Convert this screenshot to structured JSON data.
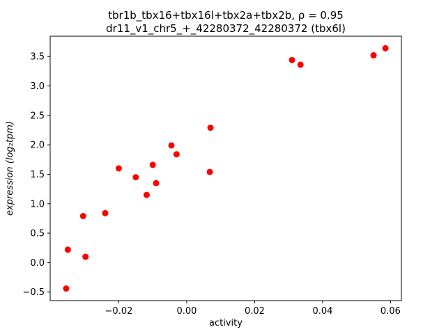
{
  "chart_data": {
    "type": "scatter",
    "title_line1": "tbr1b_tbx16+tbx16l+tbx2a+tbx2b, ρ = 0.95",
    "title_line2": "dr11_v1_chr5_+_42280372_42280372 (tbx6l)",
    "xlabel": "activity",
    "ylabel": "expression (log₂tpm)",
    "marker_color": "#ff0000",
    "marker_radius": 4.5,
    "xlim": [
      -0.0402,
      0.0632
    ],
    "ylim": [
      -0.645,
      3.845
    ],
    "xticks": [
      -0.02,
      0.0,
      0.02,
      0.04,
      0.06
    ],
    "yticks": [
      -0.5,
      0.0,
      0.5,
      1.0,
      1.5,
      2.0,
      2.5,
      3.0,
      3.5
    ],
    "points": [
      [
        -0.0355,
        -0.44
      ],
      [
        -0.035,
        0.22
      ],
      [
        -0.0305,
        0.79
      ],
      [
        -0.0298,
        0.1
      ],
      [
        -0.024,
        0.84
      ],
      [
        -0.02,
        1.6
      ],
      [
        -0.015,
        1.45
      ],
      [
        -0.0118,
        1.15
      ],
      [
        -0.01,
        1.66
      ],
      [
        -0.009,
        1.35
      ],
      [
        -0.0045,
        1.99
      ],
      [
        -0.003,
        1.84
      ],
      [
        0.0068,
        1.54
      ],
      [
        0.007,
        2.29
      ],
      [
        0.031,
        3.44
      ],
      [
        0.0335,
        3.36
      ],
      [
        0.055,
        3.52
      ],
      [
        0.0585,
        3.64
      ]
    ]
  }
}
